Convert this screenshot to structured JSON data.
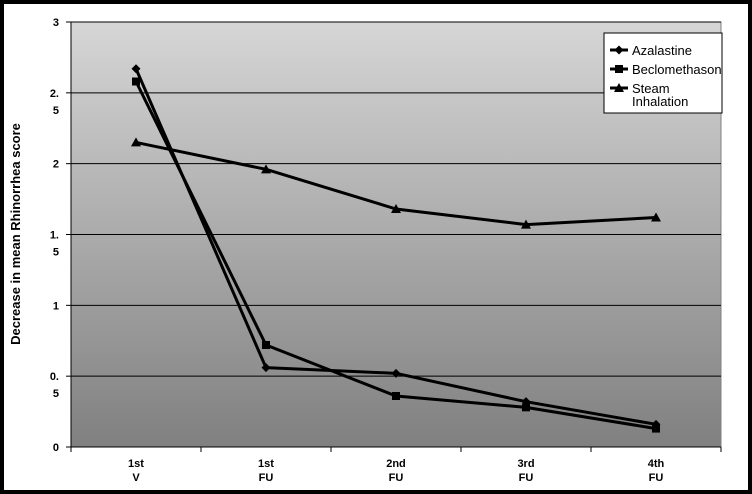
{
  "chart_data": {
    "type": "line",
    "title": "",
    "xlabel": "",
    "ylabel": "Decrease in mean Rhinorrhea score",
    "ylim": [
      0,
      3
    ],
    "y_ticks": [
      {
        "value": 0,
        "label": [
          "0"
        ]
      },
      {
        "value": 0.5,
        "label": [
          "0.",
          "5"
        ]
      },
      {
        "value": 1,
        "label": [
          "1"
        ]
      },
      {
        "value": 1.5,
        "label": [
          "1.",
          "5"
        ]
      },
      {
        "value": 2,
        "label": [
          "2"
        ]
      },
      {
        "value": 2.5,
        "label": [
          "2.",
          "5"
        ]
      },
      {
        "value": 3,
        "label": [
          "3"
        ]
      }
    ],
    "categories": [
      {
        "line1": "1st",
        "line2": "V"
      },
      {
        "line1": "1st",
        "line2": "FU"
      },
      {
        "line1": "2nd",
        "line2": "FU"
      },
      {
        "line1": "3rd",
        "line2": "FU"
      },
      {
        "line1": "4th",
        "line2": "FU"
      }
    ],
    "grid": true,
    "legend_position": "top-right",
    "series": [
      {
        "name": "Azalastine",
        "marker": "diamond",
        "color": "#000000",
        "values": [
          2.67,
          0.56,
          0.52,
          0.32,
          0.16
        ]
      },
      {
        "name": "Beclomethason",
        "marker": "square",
        "color": "#000000",
        "values": [
          2.58,
          0.72,
          0.36,
          0.28,
          0.13
        ]
      },
      {
        "name": "Steam Inhalation",
        "marker": "triangle",
        "color": "#000000",
        "values": [
          2.15,
          1.96,
          1.68,
          1.57,
          1.62
        ]
      }
    ],
    "colors": {
      "plot_top": "#d6d6d6",
      "plot_bottom": "#808080",
      "grid": "#000000",
      "frame": "#000000"
    }
  }
}
